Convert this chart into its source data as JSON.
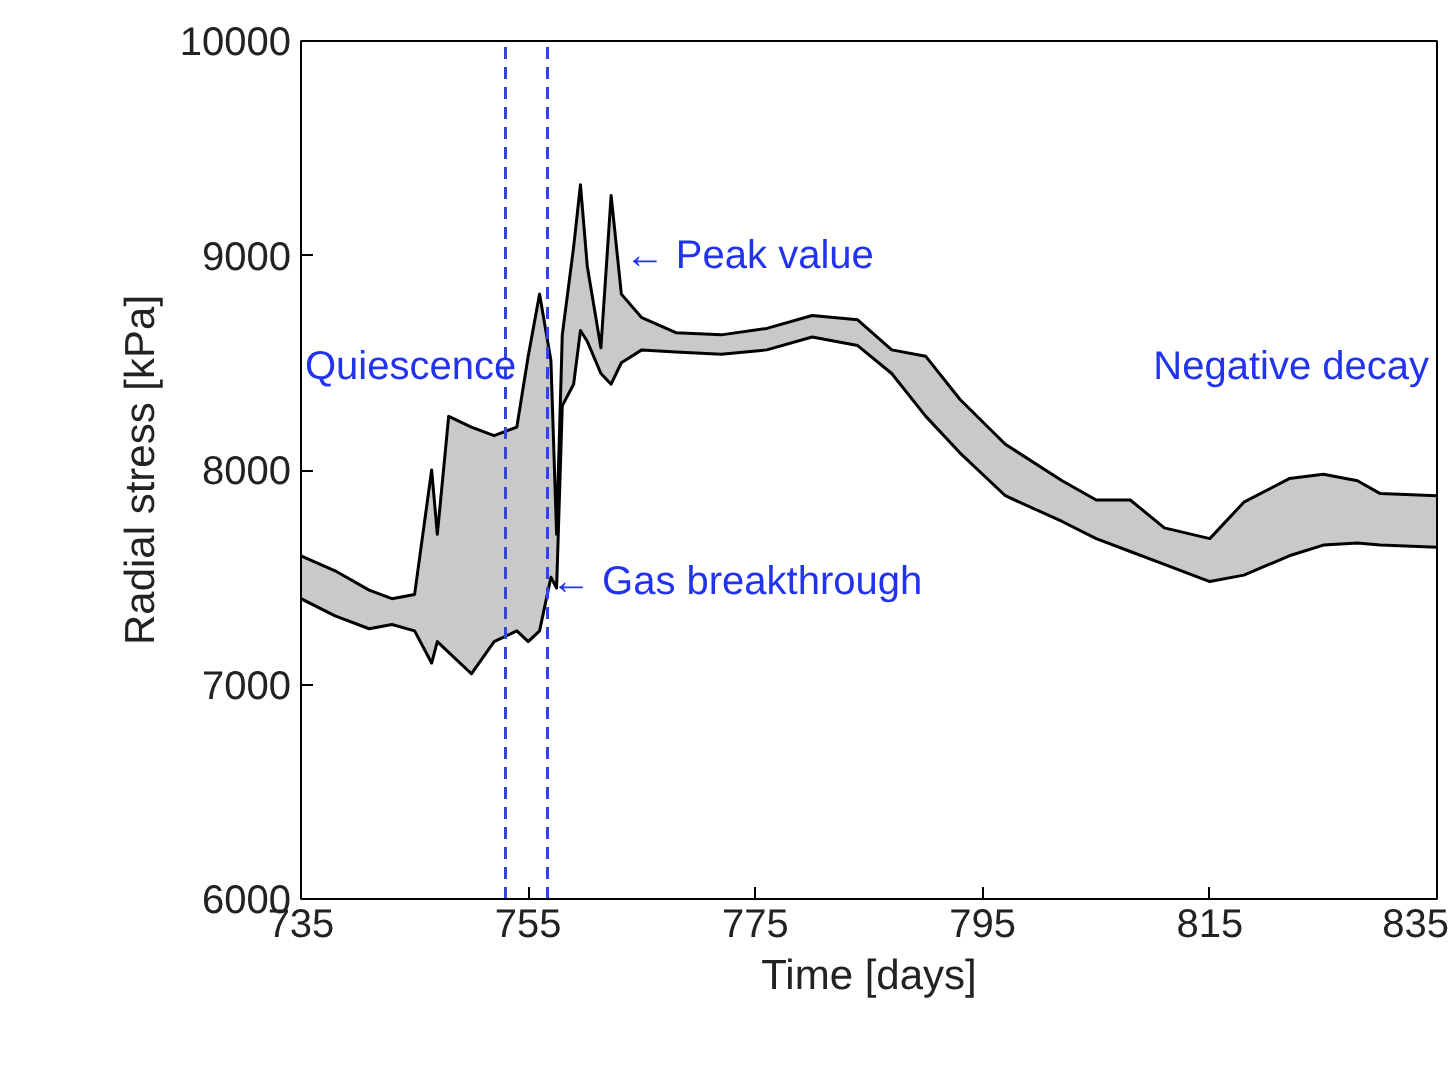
{
  "chart_data": {
    "type": "line",
    "xlabel": "Time [days]",
    "ylabel": "Radial stress [kPa]",
    "x": [
      735,
      738,
      741,
      743,
      745,
      746.5,
      747,
      748,
      750,
      752,
      754,
      755,
      756,
      757,
      757.5,
      758,
      759,
      759.6,
      760.2,
      761.4,
      762.3,
      763.2,
      765,
      768,
      772,
      776,
      780,
      784,
      787,
      790,
      793,
      797,
      802,
      805,
      808,
      811,
      815,
      818,
      822,
      825,
      828,
      830,
      835
    ],
    "series": [
      {
        "color": "#000000",
        "values": [
          7600,
          7530,
          7440,
          7400,
          7420,
          8000,
          7700,
          8250,
          8200,
          8160,
          8200,
          8530,
          8820,
          8510,
          7700,
          8630,
          9040,
          9330,
          8950,
          8570,
          9280,
          8820,
          8710,
          8640,
          8630,
          8660,
          8720,
          8700,
          8560,
          8530,
          8330,
          8120,
          7950,
          7860,
          7860,
          7730,
          7680,
          7850,
          7960,
          7980,
          7950,
          7890,
          7880
        ],
        "lower": [
          7400,
          7320,
          7260,
          7280,
          7250,
          7100,
          7200,
          7150,
          7050,
          7200,
          7250,
          7200,
          7250,
          7500,
          7450,
          8300,
          8400,
          8650,
          8600,
          8450,
          8400,
          8500,
          8560,
          8550,
          8540,
          8560,
          8620,
          8580,
          8450,
          8250,
          8080,
          7880,
          7760,
          7680,
          7620,
          7560,
          7480,
          7510,
          7600,
          7650,
          7660,
          7650,
          7640
        ],
        "upper": [
          7600,
          7530,
          7440,
          7400,
          7420,
          8000,
          7700,
          8250,
          8200,
          8160,
          8200,
          8530,
          8820,
          8510,
          7700,
          8630,
          9040,
          9330,
          8950,
          8570,
          9280,
          8820,
          8710,
          8640,
          8630,
          8660,
          8720,
          8700,
          8560,
          8530,
          8330,
          8120,
          7950,
          7860,
          7860,
          7730,
          7680,
          7850,
          7960,
          7980,
          7950,
          7890,
          7880
        ]
      },
      {
        "color": "#000000",
        "values": [
          7400,
          7320,
          7260,
          7280,
          7250,
          7100,
          7200,
          7150,
          7050,
          7200,
          7250,
          7200,
          7250,
          7500,
          7450,
          8300,
          8400,
          8650,
          8600,
          8450,
          8400,
          8500,
          8560,
          8550,
          8540,
          8560,
          8620,
          8580,
          8450,
          8250,
          8080,
          7880,
          7760,
          7680,
          7620,
          7560,
          7480,
          7510,
          7600,
          7650,
          7660,
          7650,
          7640
        ]
      }
    ],
    "xlim": [
      735,
      835
    ],
    "xticks": [
      735,
      755,
      775,
      795,
      815,
      835
    ],
    "ylim": [
      6000,
      10000
    ],
    "yticks": [
      6000,
      7000,
      8000,
      9000,
      10000
    ],
    "ref_lines": [
      {
        "axis": "x",
        "value": 753,
        "color": "#3344dd",
        "line_style": "dashed"
      },
      {
        "axis": "x",
        "value": 756.7,
        "color": "#3344dd",
        "line_style": "dashed"
      }
    ],
    "annotations": [
      "Quiescence",
      {
        "text": "← Peak value",
        "x": 763.5,
        "y": 9000
      },
      "Negative decay",
      {
        "text": "← Gas breakthrough",
        "x": 757,
        "y": 7480
      }
    ],
    "grid": false
  }
}
